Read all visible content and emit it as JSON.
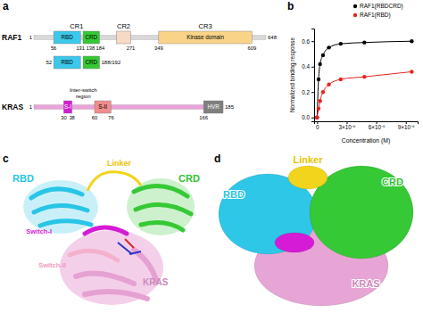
{
  "panels": {
    "a": {
      "label": "a",
      "raf1": {
        "name": "RAF1",
        "start": 1,
        "end": 648,
        "color": "#d9d9d9",
        "regions": [
          {
            "label": "CR1",
            "start": 56,
            "end": 184
          },
          {
            "label": "CR2",
            "end": 271
          },
          {
            "label": "CR3",
            "start": 349,
            "end": 609
          }
        ],
        "domains": [
          {
            "name": "RBD",
            "start": 56,
            "end": 131,
            "color": "#3cc8ea"
          },
          {
            "name": "CRD",
            "start": 138,
            "end": 184,
            "color": "#35c935"
          },
          {
            "end": 271,
            "color": "#f7d9c4"
          },
          {
            "name": "Kinase domain",
            "start": 349,
            "end": 609,
            "color": "#f9d488"
          }
        ]
      },
      "construct": {
        "start": 52,
        "end": "188/192"
      },
      "kras": {
        "name": "KRAS",
        "start": 1,
        "end": 185,
        "color": "#e9a3d9",
        "domains": [
          {
            "name": "S-I",
            "start": 30,
            "end": 38,
            "color": "#d51bd5"
          },
          {
            "name": "S-II",
            "start": 60,
            "end": 76,
            "color": "#f08d8d"
          },
          {
            "name": "HVR",
            "start": 166,
            "end": 185,
            "color": "#7f7f7f"
          }
        ],
        "annotation": [
          "Inter-switch",
          "region"
        ]
      }
    },
    "b": {
      "label": "b"
    },
    "c": {
      "label": "c",
      "labels": [
        {
          "text": "RBD",
          "color": "#29c5e6"
        },
        {
          "text": "Linker",
          "color": "#e8c300"
        },
        {
          "text": "CRD",
          "color": "#33c033"
        },
        {
          "text": "Switch-I",
          "color": "#d51bd5"
        },
        {
          "text": "Switch-II",
          "color": "#f09ac0"
        },
        {
          "text": "KRAS",
          "color": "#c98bbb"
        }
      ]
    },
    "d": {
      "label": "d",
      "labels": [
        {
          "text": "RBD",
          "color": "#29c5e6"
        },
        {
          "text": "Linker",
          "color": "#e8c300"
        },
        {
          "text": "CRD",
          "color": "#33c033"
        },
        {
          "text": "KRAS",
          "color": "#c98bbb"
        }
      ]
    }
  },
  "chart_data": {
    "type": "scatter",
    "x_label": "Concentration (M)",
    "y_label": "Normalized binding response",
    "x": [
      0,
      1.5e-07,
      3e-07,
      6e-07,
      1.2e-06,
      2.4e-06,
      4.8e-06,
      9.6e-06
    ],
    "xlim": [
      -3e-07,
      1.02e-05
    ],
    "xticks": [
      0,
      {
        "value": 3e-06,
        "label": "3×10⁻⁶"
      },
      {
        "value": 6e-06,
        "label": "6×10⁻⁶"
      },
      {
        "value": 9e-06,
        "label": "9×10⁻⁶"
      }
    ],
    "ylim": [
      -0.03,
      0.7
    ],
    "yticks": [
      {
        "value": 0,
        "label": "0.0"
      },
      {
        "value": 0.2,
        "label": "0.2"
      },
      {
        "value": 0.4,
        "label": "0.4"
      },
      {
        "value": 0.6,
        "label": "0.6"
      }
    ],
    "legend": "top",
    "series": [
      {
        "name": "RAF1(RBDCRD)",
        "color": "#000000",
        "marker": "circle",
        "line_style": "solid",
        "values": [
          0,
          0.3,
          0.42,
          0.49,
          0.55,
          0.58,
          0.59,
          0.6
        ]
      },
      {
        "name": "RAF1(RBD)",
        "color": "#e8231f",
        "marker": "circle",
        "line_style": "solid",
        "values": [
          0,
          0.07,
          0.13,
          0.2,
          0.26,
          0.3,
          0.32,
          0.36
        ]
      }
    ]
  }
}
